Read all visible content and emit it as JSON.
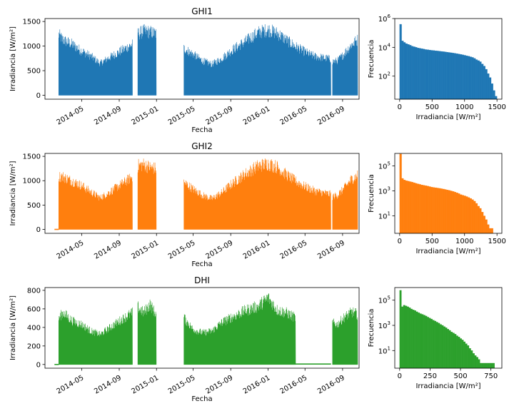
{
  "chart_data": [
    {
      "type": "line",
      "title": "GHI1",
      "xlabel": "Fecha",
      "ylabel": "Irradiancia [W/m²]",
      "color": "#1f77b4",
      "xlim": [
        "2014-01-01",
        "2016-10-25"
      ],
      "ylim": [
        -80,
        1560
      ],
      "x_ticks": [
        "2014-05",
        "2014-09",
        "2015-01",
        "2015-05",
        "2015-09",
        "2016-01",
        "2016-05",
        "2016-09"
      ],
      "y_ticks": [
        0,
        500,
        1000,
        1500
      ],
      "segments": [
        {
          "start": "2014-02-15",
          "end": "2014-10-14",
          "envelope": [
            [
              "2014-02-15",
              1370
            ],
            [
              "2014-03-01",
              1250
            ],
            [
              "2014-04-01",
              1150
            ],
            [
              "2014-05-01",
              1000
            ],
            [
              "2014-06-01",
              880
            ],
            [
              "2014-07-01",
              720
            ],
            [
              "2014-08-01",
              860
            ],
            [
              "2014-09-01",
              980
            ],
            [
              "2014-10-14",
              1150
            ]
          ]
        },
        {
          "start": "2014-11-01",
          "end": "2014-12-31",
          "envelope": [
            [
              "2014-11-01",
              1380
            ],
            [
              "2014-11-20",
              1450
            ],
            [
              "2014-12-10",
              1430
            ],
            [
              "2014-12-31",
              1390
            ]
          ]
        },
        {
          "start": "2015-04-01",
          "end": "2016-07-25",
          "envelope": [
            [
              "2015-04-01",
              1060
            ],
            [
              "2015-05-01",
              930
            ],
            [
              "2015-06-01",
              780
            ],
            [
              "2015-07-01",
              700
            ],
            [
              "2015-08-01",
              820
            ],
            [
              "2015-09-01",
              1000
            ],
            [
              "2015-10-15",
              1200
            ],
            [
              "2015-12-01",
              1420
            ],
            [
              "2016-01-01",
              1480
            ],
            [
              "2016-02-01",
              1400
            ],
            [
              "2016-03-01",
              1250
            ],
            [
              "2016-04-01",
              1100
            ],
            [
              "2016-05-01",
              980
            ],
            [
              "2016-06-01",
              880
            ],
            [
              "2016-07-25",
              820
            ]
          ]
        },
        {
          "start": "2016-07-30",
          "end": "2016-10-20",
          "envelope": [
            [
              "2016-07-30",
              760
            ],
            [
              "2016-08-15",
              780
            ],
            [
              "2016-09-01",
              900
            ],
            [
              "2016-10-01",
              1150
            ],
            [
              "2016-10-20",
              1250
            ]
          ]
        }
      ]
    },
    {
      "type": "line",
      "title": "GHI2",
      "xlabel": "Fecha",
      "ylabel": "Irradiancia [W/m²]",
      "color": "#ff7f0e",
      "xlim": [
        "2014-01-01",
        "2016-10-25"
      ],
      "ylim": [
        -80,
        1560
      ],
      "x_ticks": [
        "2014-05",
        "2014-09",
        "2015-01",
        "2015-05",
        "2015-09",
        "2016-01",
        "2016-05",
        "2016-09"
      ],
      "y_ticks": [
        0,
        500,
        1000,
        1500
      ],
      "segments": [
        {
          "start": "2014-02-01",
          "end": "2014-02-15",
          "flat": 0
        },
        {
          "start": "2014-02-15",
          "end": "2014-10-14",
          "envelope": [
            [
              "2014-02-15",
              1210
            ],
            [
              "2014-03-01",
              1200
            ],
            [
              "2014-04-01",
              1100
            ],
            [
              "2014-05-01",
              1000
            ],
            [
              "2014-06-01",
              850
            ],
            [
              "2014-07-01",
              720
            ],
            [
              "2014-08-01",
              850
            ],
            [
              "2014-09-01",
              1000
            ],
            [
              "2014-10-14",
              1200
            ]
          ]
        },
        {
          "start": "2014-11-01",
          "end": "2014-12-31",
          "envelope": [
            [
              "2014-11-01",
              1450
            ],
            [
              "2014-11-20",
              1480
            ],
            [
              "2014-12-10",
              1420
            ],
            [
              "2014-12-31",
              1380
            ]
          ]
        },
        {
          "start": "2015-04-01",
          "end": "2016-07-25",
          "envelope": [
            [
              "2015-04-01",
              1070
            ],
            [
              "2015-05-01",
              920
            ],
            [
              "2015-06-01",
              780
            ],
            [
              "2015-07-01",
              700
            ],
            [
              "2015-08-01",
              830
            ],
            [
              "2015-09-01",
              1020
            ],
            [
              "2015-10-15",
              1250
            ],
            [
              "2015-12-01",
              1450
            ],
            [
              "2016-01-01",
              1500
            ],
            [
              "2016-02-01",
              1420
            ],
            [
              "2016-03-01",
              1250
            ],
            [
              "2016-04-01",
              1100
            ],
            [
              "2016-05-01",
              980
            ],
            [
              "2016-06-01",
              880
            ],
            [
              "2016-07-25",
              800
            ]
          ]
        },
        {
          "start": "2016-07-30",
          "end": "2016-10-20",
          "envelope": [
            [
              "2016-07-30",
              750
            ],
            [
              "2016-08-15",
              780
            ],
            [
              "2016-09-01",
              900
            ],
            [
              "2016-10-01",
              1150
            ],
            [
              "2016-10-20",
              1230
            ]
          ]
        }
      ]
    },
    {
      "type": "line",
      "title": "DHI",
      "xlabel": "Fecha",
      "ylabel": "Irradiancia [W/m²]",
      "color": "#2ca02c",
      "xlim": [
        "2014-01-01",
        "2016-10-25"
      ],
      "ylim": [
        -40,
        830
      ],
      "x_ticks": [
        "2014-05",
        "2014-09",
        "2015-01",
        "2015-05",
        "2015-09",
        "2016-01",
        "2016-05",
        "2016-09"
      ],
      "y_ticks": [
        0,
        200,
        400,
        600,
        800
      ],
      "segments": [
        {
          "start": "2014-02-01",
          "end": "2014-02-15",
          "flat": 0
        },
        {
          "start": "2014-02-15",
          "end": "2014-10-14",
          "envelope": [
            [
              "2014-02-15",
              560
            ],
            [
              "2014-03-01",
              620
            ],
            [
              "2014-04-01",
              520
            ],
            [
              "2014-05-01",
              480
            ],
            [
              "2014-06-01",
              400
            ],
            [
              "2014-07-01",
              360
            ],
            [
              "2014-08-01",
              440
            ],
            [
              "2014-09-01",
              520
            ],
            [
              "2014-10-14",
              620
            ]
          ]
        },
        {
          "start": "2014-11-01",
          "end": "2014-12-31",
          "envelope": [
            [
              "2014-11-01",
              690
            ],
            [
              "2014-11-20",
              620
            ],
            [
              "2014-12-10",
              720
            ],
            [
              "2014-12-31",
              600
            ]
          ]
        },
        {
          "start": "2015-04-01",
          "end": "2016-03-31",
          "envelope": [
            [
              "2015-04-01",
              560
            ],
            [
              "2015-05-01",
              420
            ],
            [
              "2015-06-01",
              380
            ],
            [
              "2015-07-01",
              400
            ],
            [
              "2015-08-01",
              500
            ],
            [
              "2015-09-01",
              560
            ],
            [
              "2015-10-15",
              640
            ],
            [
              "2015-12-01",
              700
            ],
            [
              "2016-01-01",
              800
            ],
            [
              "2016-02-01",
              650
            ],
            [
              "2016-03-01",
              620
            ],
            [
              "2016-03-31",
              560
            ]
          ]
        },
        {
          "start": "2016-03-31",
          "end": "2016-07-25",
          "flat": 5
        },
        {
          "start": "2016-07-30",
          "end": "2016-10-20",
          "envelope": [
            [
              "2016-07-30",
              500
            ],
            [
              "2016-08-15",
              480
            ],
            [
              "2016-09-01",
              550
            ],
            [
              "2016-10-01",
              630
            ],
            [
              "2016-10-20",
              600
            ]
          ]
        }
      ]
    },
    {
      "type": "bar",
      "subtype": "histogram",
      "xlabel": "Irradiancia [W/m²]",
      "ylabel": "Frecuencia",
      "color": "#1f77b4",
      "y_scale": "log",
      "xlim": [
        -75,
        1575
      ],
      "ylim": [
        2.5,
        1000000
      ],
      "x_ticks": [
        0,
        500,
        1000,
        1500
      ],
      "y_ticks": [
        {
          "value": 100,
          "label": "10",
          "exp": "2"
        },
        {
          "value": 10000,
          "label": "10",
          "exp": "4"
        },
        {
          "value": 1000000,
          "label": "10",
          "exp": "6"
        }
      ],
      "bin_start": 0,
      "bin_width": 30,
      "counts": [
        400000,
        28000,
        22000,
        18000,
        16000,
        14000,
        12000,
        11000,
        10000,
        9000,
        8500,
        8000,
        7500,
        7000,
        6800,
        6500,
        6200,
        6000,
        5800,
        5600,
        5400,
        5200,
        5000,
        4800,
        4600,
        4400,
        4200,
        4000,
        3800,
        3600,
        3400,
        3200,
        3000,
        2800,
        2600,
        2400,
        2200,
        2000,
        1700,
        1400,
        1200,
        1000,
        700,
        500,
        300,
        150,
        80,
        30,
        10,
        4
      ]
    },
    {
      "type": "bar",
      "subtype": "histogram",
      "xlabel": "Irradiancia [W/m²]",
      "ylabel": "Frecuencia",
      "color": "#ff7f0e",
      "y_scale": "log",
      "xlim": [
        -75,
        1575
      ],
      "ylim": [
        0.4,
        1000000
      ],
      "x_ticks": [
        0,
        500,
        1000,
        1500
      ],
      "y_ticks": [
        {
          "value": 10,
          "label": "10",
          "exp": "1"
        },
        {
          "value": 1000,
          "label": "10",
          "exp": "3"
        },
        {
          "value": 100000,
          "label": "10",
          "exp": "5"
        }
      ],
      "bin_start": 0,
      "bin_width": 30,
      "counts": [
        900000,
        10000,
        7500,
        6500,
        6000,
        5500,
        5000,
        4500,
        4000,
        3600,
        3300,
        3000,
        2800,
        2600,
        2400,
        2200,
        2000,
        1900,
        1800,
        1700,
        1600,
        1500,
        1400,
        1300,
        1200,
        1100,
        1000,
        900,
        800,
        700,
        600,
        500,
        450,
        400,
        350,
        300,
        250,
        200,
        150,
        100,
        60,
        40,
        20,
        10,
        5,
        2,
        1,
        1
      ]
    },
    {
      "type": "bar",
      "subtype": "histogram",
      "xlabel": "Irradiancia [W/m²]",
      "ylabel": "Frecuencia",
      "color": "#2ca02c",
      "y_scale": "log",
      "xlim": [
        -40,
        840
      ],
      "ylim": [
        0.4,
        1000000
      ],
      "x_ticks": [
        0,
        250,
        500,
        750
      ],
      "y_ticks": [
        {
          "value": 10,
          "label": "10",
          "exp": "1"
        },
        {
          "value": 1000,
          "label": "10",
          "exp": "3"
        },
        {
          "value": 100000,
          "label": "10",
          "exp": "5"
        }
      ],
      "bin_start": 0,
      "bin_width": 15,
      "counts": [
        600000,
        30000,
        40000,
        35000,
        30000,
        25000,
        20000,
        17000,
        15000,
        12000,
        10000,
        8500,
        7500,
        6500,
        5500,
        4500,
        3800,
        3200,
        2600,
        2200,
        1800,
        1500,
        1200,
        1000,
        800,
        650,
        500,
        400,
        300,
        250,
        200,
        150,
        120,
        90,
        70,
        50,
        35,
        25,
        15,
        10,
        6,
        4,
        3,
        2,
        1,
        1,
        1,
        1,
        1,
        1,
        1,
        1
      ]
    }
  ]
}
